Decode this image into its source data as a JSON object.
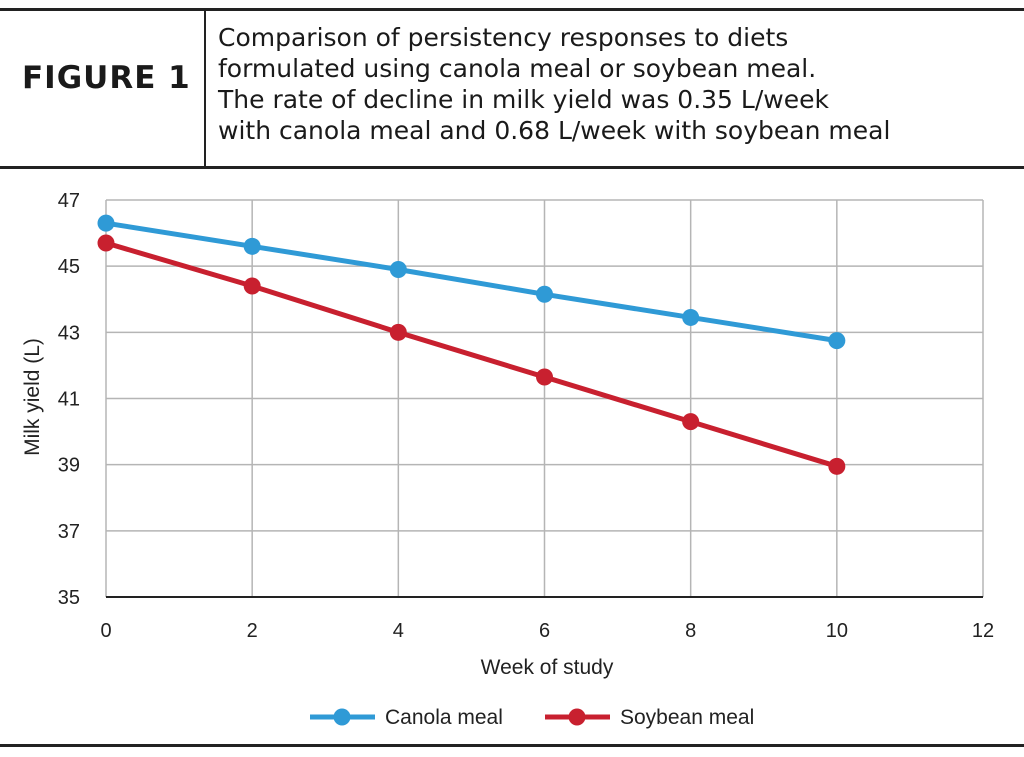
{
  "figure_label": "FIGURE 1",
  "caption": "Comparison of persistency responses to diets\nformulated using canola meal or soybean meal.\nThe rate of decline in milk yield was 0.35 L/week\nwith canola meal and 0.68 L/week with soybean meal",
  "chart_data": {
    "type": "line",
    "xlabel": "Week of study",
    "ylabel": "Milk yield (L)",
    "xlim": [
      0,
      12
    ],
    "ylim": [
      35,
      47
    ],
    "xticks": [
      "0",
      "2",
      "4",
      "6",
      "8",
      "10",
      "12"
    ],
    "yticks": [
      "35",
      "37",
      "39",
      "41",
      "43",
      "45",
      "47"
    ],
    "grid": true,
    "legend_position": "bottom",
    "x": [
      0,
      2,
      4,
      6,
      8,
      10
    ],
    "series": [
      {
        "name": "Canola meal",
        "color": "#2f9ad6",
        "values": [
          46.3,
          45.6,
          44.9,
          44.15,
          43.45,
          42.75
        ]
      },
      {
        "name": "Soybean meal",
        "color": "#c8202f",
        "values": [
          45.7,
          44.4,
          43.0,
          41.65,
          40.3,
          38.95
        ]
      }
    ]
  }
}
